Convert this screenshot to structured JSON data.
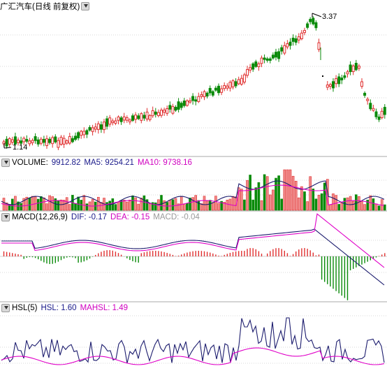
{
  "price_panel": {
    "title": "广汇汽车(日线 前复权)",
    "high_label": "3.37",
    "low_label": "1.14"
  },
  "volume_panel": {
    "name": "VOLUME:",
    "value": "9912.82",
    "ma5": "MA5: 9254.21",
    "ma10": "MA10: 9738.16"
  },
  "macd_panel": {
    "name": "MACD(12,26,9)",
    "dif": "DIF: -0.17",
    "dea": "DEA: -0.15",
    "macd": "MACD: -0.04"
  },
  "hsl_panel": {
    "name": "HSL(5)",
    "hsl": "HSL: 1.60",
    "mahsl": "MAHSL: 1.49"
  },
  "colors": {
    "up": "#e03030",
    "down": "#0a8a0a",
    "line_dark": "#1c1c6e",
    "line_pink": "#e000c8",
    "grid": "#d8d8d8",
    "value_blue": "#1a1a8a"
  }
}
